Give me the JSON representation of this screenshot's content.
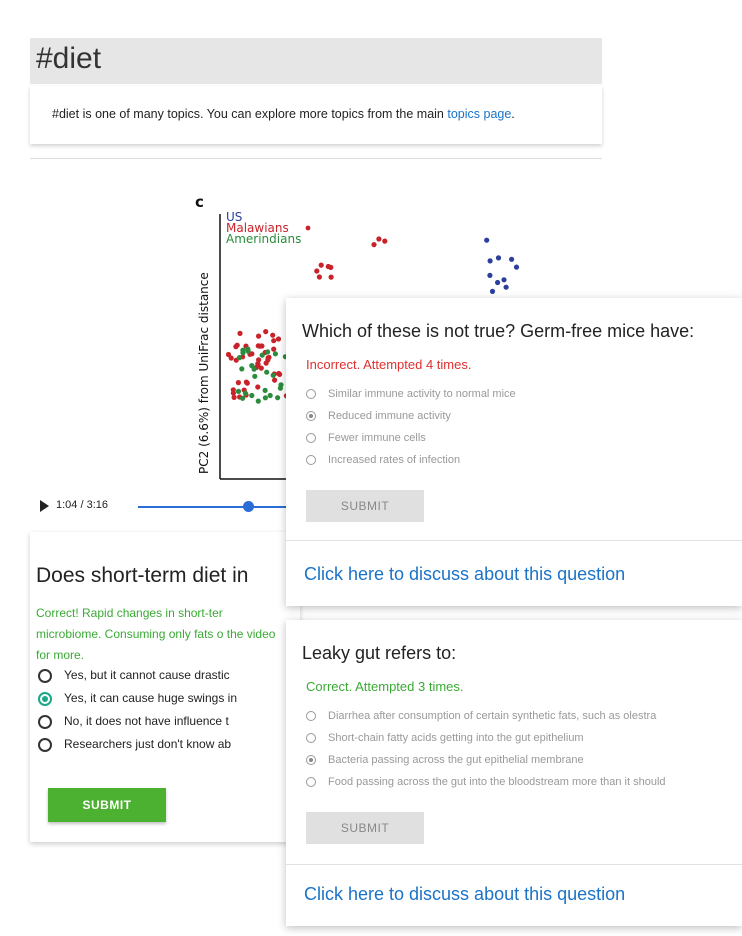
{
  "topic": {
    "title": "#diet",
    "description_prefix": "#diet is one of many topics. You can explore more topics from the main ",
    "topics_link": "topics page",
    "description_suffix": "."
  },
  "video": {
    "time": "1:04 / 3:16",
    "progress_fraction": 0.33
  },
  "figure": {
    "panel_letter": "c",
    "legend": [
      {
        "name": "US",
        "color": "#2b3f9c"
      },
      {
        "name": "Malawians",
        "color": "#c8232a"
      },
      {
        "name": "Amerindians",
        "color": "#2a8c3c"
      }
    ],
    "ylabel": "PC2 (6.6%) from UniFrac distance"
  },
  "question1": {
    "title": "Does short-term diet in",
    "feedback": "Correct! Rapid changes in short-ter microbiome. Consuming only fats o the video for more.",
    "options": [
      {
        "label": "Yes, but it cannot cause drastic",
        "selected": false
      },
      {
        "label": "Yes, it can cause huge swings in",
        "selected": true
      },
      {
        "label": "No, it does not have influence t",
        "selected": false
      },
      {
        "label": "Researchers just don't know ab",
        "selected": false
      }
    ],
    "submit_label": "SUBMIT"
  },
  "question2": {
    "title": "Which of these is not true? Germ-free mice have:",
    "status": "Incorrect. Attempted 4 times.",
    "options": [
      {
        "label": "Similar immune activity to normal mice",
        "selected": false
      },
      {
        "label": "Reduced immune activity",
        "selected": true
      },
      {
        "label": "Fewer immune cells",
        "selected": false
      },
      {
        "label": "Increased rates of infection",
        "selected": false
      }
    ],
    "submit_label": "SUBMIT",
    "discuss_link": "Click here to discuss about this question"
  },
  "question3": {
    "title": "Leaky gut refers to:",
    "status": "Correct. Attempted 3 times.",
    "options": [
      {
        "label": "Diarrhea after consumption of certain synthetic fats, such as olestra",
        "selected": false
      },
      {
        "label": "Short-chain fatty acids getting into the gut epithelium",
        "selected": false
      },
      {
        "label": "Bacteria passing across the gut epithelial membrane",
        "selected": true
      },
      {
        "label": "Food passing across the gut into the bloodstream more than it should",
        "selected": false
      }
    ],
    "submit_label": "SUBMIT",
    "discuss_link": "Click here to discuss about this question"
  }
}
